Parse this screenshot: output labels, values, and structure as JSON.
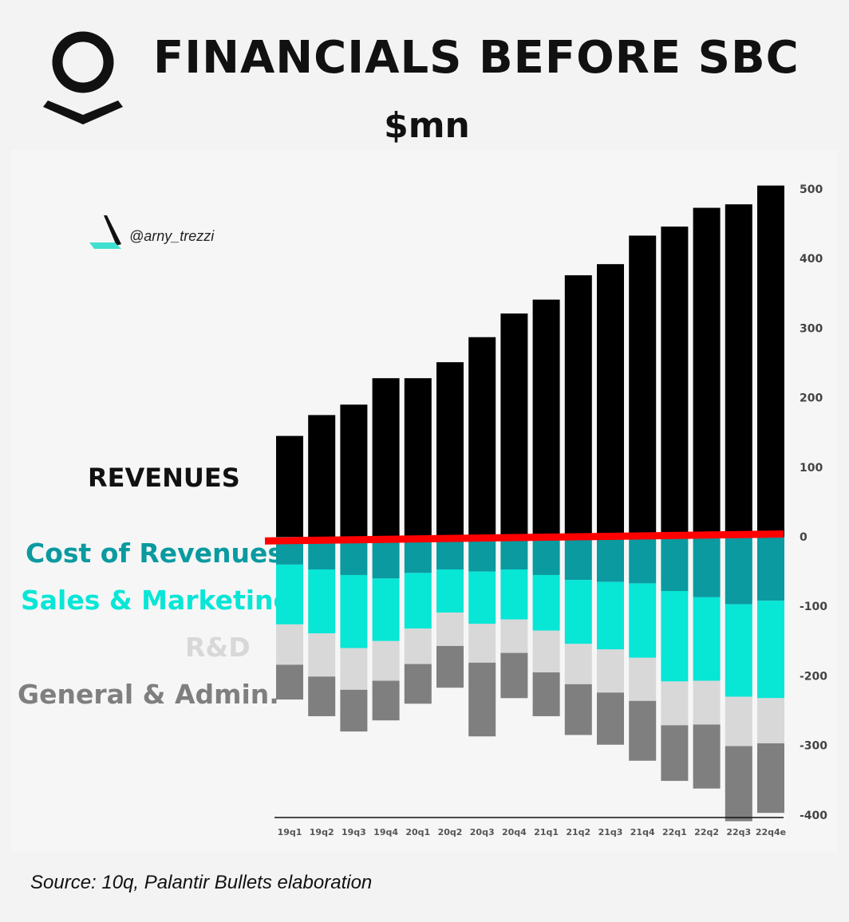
{
  "header": {
    "title": "FINANCIALS BEFORE SBC",
    "subtitle": "$mn",
    "logo": "palantir-logo"
  },
  "watermark": {
    "handle": "@arny_trezzi",
    "icon": "arny-trezzi-logo"
  },
  "legend": {
    "revenues": "REVENUES",
    "cost_of_revenues": "Cost of Revenues",
    "sales_marketing": "Sales & Marketing",
    "rnd": "R&D",
    "general_admin": "General & Admin."
  },
  "colors": {
    "revenues": "#000000",
    "cost_of_revenues": "#0a9aa0",
    "sales_marketing": "#08e6d6",
    "rnd": "#d8d8d8",
    "general_admin": "#7f7f7f",
    "zero_line": "#ff0000"
  },
  "source": "Source: 10q, Palantir Bullets elaboration",
  "chart_data": {
    "type": "bar",
    "stacked": true,
    "categories": [
      "19q1",
      "19q2",
      "19q3",
      "19q4",
      "20q1",
      "20q2",
      "20q3",
      "20q4",
      "21q1",
      "21q2",
      "21q3",
      "21q4",
      "22q1",
      "22q2",
      "22q3",
      "22q4e"
    ],
    "series": [
      {
        "name": "REVENUES",
        "values": [
          145,
          175,
          190,
          228,
          228,
          251,
          287,
          321,
          341,
          376,
          392,
          433,
          446,
          473,
          478,
          505
        ]
      },
      {
        "name": "Cost of Revenues",
        "values": [
          -40,
          -47,
          -55,
          -60,
          -52,
          -47,
          -50,
          -47,
          -55,
          -62,
          -65,
          -67,
          -78,
          -87,
          -97,
          -92
        ]
      },
      {
        "name": "Sales & Marketing",
        "values": [
          -86,
          -92,
          -105,
          -90,
          -80,
          -62,
          -75,
          -72,
          -80,
          -92,
          -97,
          -107,
          -130,
          -120,
          -133,
          -140
        ]
      },
      {
        "name": "R&D",
        "values": [
          -58,
          -62,
          -60,
          -57,
          -51,
          -48,
          -56,
          -48,
          -60,
          -58,
          -62,
          -62,
          -63,
          -63,
          -71,
          -65
        ]
      },
      {
        "name": "General & Admin.",
        "values": [
          -50,
          -57,
          -60,
          -57,
          -57,
          -60,
          -106,
          -65,
          -63,
          -73,
          -75,
          -86,
          -80,
          -92,
          -108,
          -100
        ]
      }
    ],
    "ylim": [
      -400,
      500
    ],
    "yticks": [
      500,
      400,
      300,
      200,
      100,
      0,
      -100,
      -200,
      -300,
      -400
    ],
    "y_axis_position": "right",
    "grid": false
  }
}
